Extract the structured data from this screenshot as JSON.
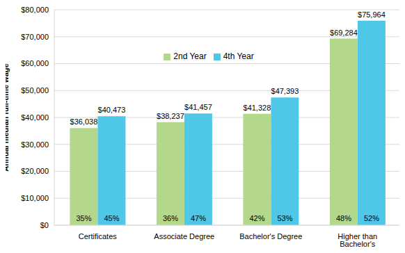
{
  "chart_data": {
    "type": "bar",
    "y_label": "Annual median full-time wage",
    "categories": [
      "Certificates",
      "Associate Degree",
      "Bachelor's Degree",
      "Higher than Bachelor's Degrees"
    ],
    "series": [
      {
        "name": "2nd Year",
        "color": "#b3d88c",
        "values": [
          36038,
          38237,
          41328,
          69284
        ],
        "value_labels": [
          "$36,038",
          "$38,237",
          "$41,328",
          "$69,284"
        ],
        "percentages": [
          35,
          36,
          42,
          48
        ],
        "percentage_labels": [
          "35%",
          "36%",
          "42%",
          "48%"
        ]
      },
      {
        "name": "4th Year",
        "color": "#4fc8e8",
        "values": [
          40473,
          41457,
          47393,
          75964
        ],
        "value_labels": [
          "$40,473",
          "$41,457",
          "$47,393",
          "$75,964"
        ],
        "percentages": [
          45,
          47,
          53,
          52
        ],
        "percentage_labels": [
          "45%",
          "47%",
          "53%",
          "52%"
        ]
      }
    ],
    "ylim": [
      0,
      80000
    ],
    "yticks": [
      {
        "value": 0,
        "label": "$0"
      },
      {
        "value": 10000,
        "label": "$10,000"
      },
      {
        "value": 20000,
        "label": "$20,000"
      },
      {
        "value": 30000,
        "label": "$30,000"
      },
      {
        "value": 40000,
        "label": "$40,000"
      },
      {
        "value": 50000,
        "label": "$50,000"
      },
      {
        "value": 60000,
        "label": "$60,000"
      },
      {
        "value": 70000,
        "label": "$70,000"
      },
      {
        "value": 80000,
        "label": "$80,000"
      }
    ],
    "grid": true,
    "legend": "top",
    "data_labels": true
  }
}
